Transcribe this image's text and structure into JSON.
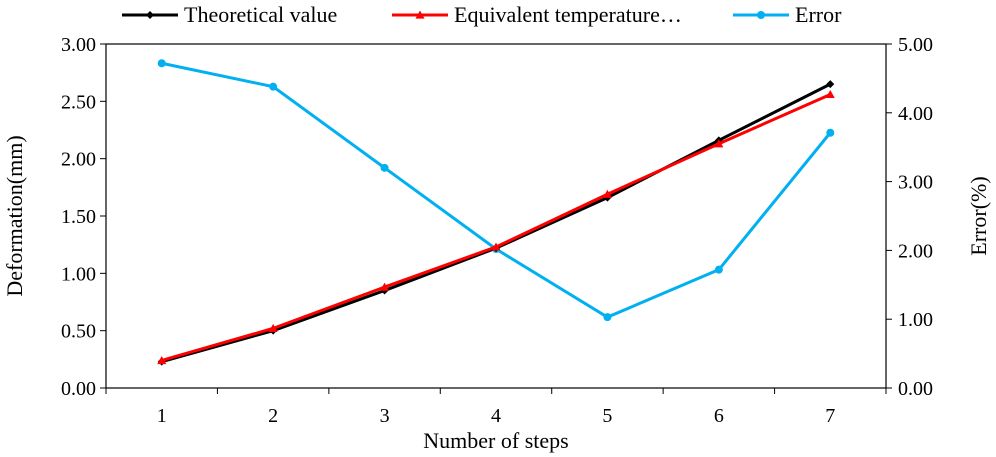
{
  "chart_data": {
    "type": "line",
    "title": "",
    "xlabel": "Number of steps",
    "ylabel_left": "Deformation(mm)",
    "ylabel_right": "Error(%)",
    "categories": [
      "1",
      "2",
      "3",
      "4",
      "5",
      "6",
      "7"
    ],
    "ylim_left": [
      0,
      3
    ],
    "ylim_right": [
      0,
      5
    ],
    "yticks_left": [
      "0.00",
      "0.50",
      "1.00",
      "1.50",
      "2.00",
      "2.50",
      "3.00"
    ],
    "yticks_right": [
      "0.00",
      "1.00",
      "2.00",
      "3.00",
      "4.00",
      "5.00"
    ],
    "grid": false,
    "legend_position": "top",
    "series": [
      {
        "name": "Theoretical value",
        "axis": "left",
        "color": "#000000",
        "marker": "diamond",
        "values": [
          0.23,
          0.5,
          0.85,
          1.22,
          1.66,
          2.16,
          2.65
        ]
      },
      {
        "name": "Equivalent temperature…",
        "axis": "left",
        "color": "#ff0000",
        "marker": "triangle",
        "values": [
          0.24,
          0.52,
          0.88,
          1.23,
          1.69,
          2.13,
          2.56
        ]
      },
      {
        "name": "Error",
        "axis": "right",
        "color": "#00b0f0",
        "marker": "circle",
        "values": [
          4.72,
          4.38,
          3.2,
          2.02,
          1.03,
          1.72,
          3.71
        ]
      }
    ]
  }
}
